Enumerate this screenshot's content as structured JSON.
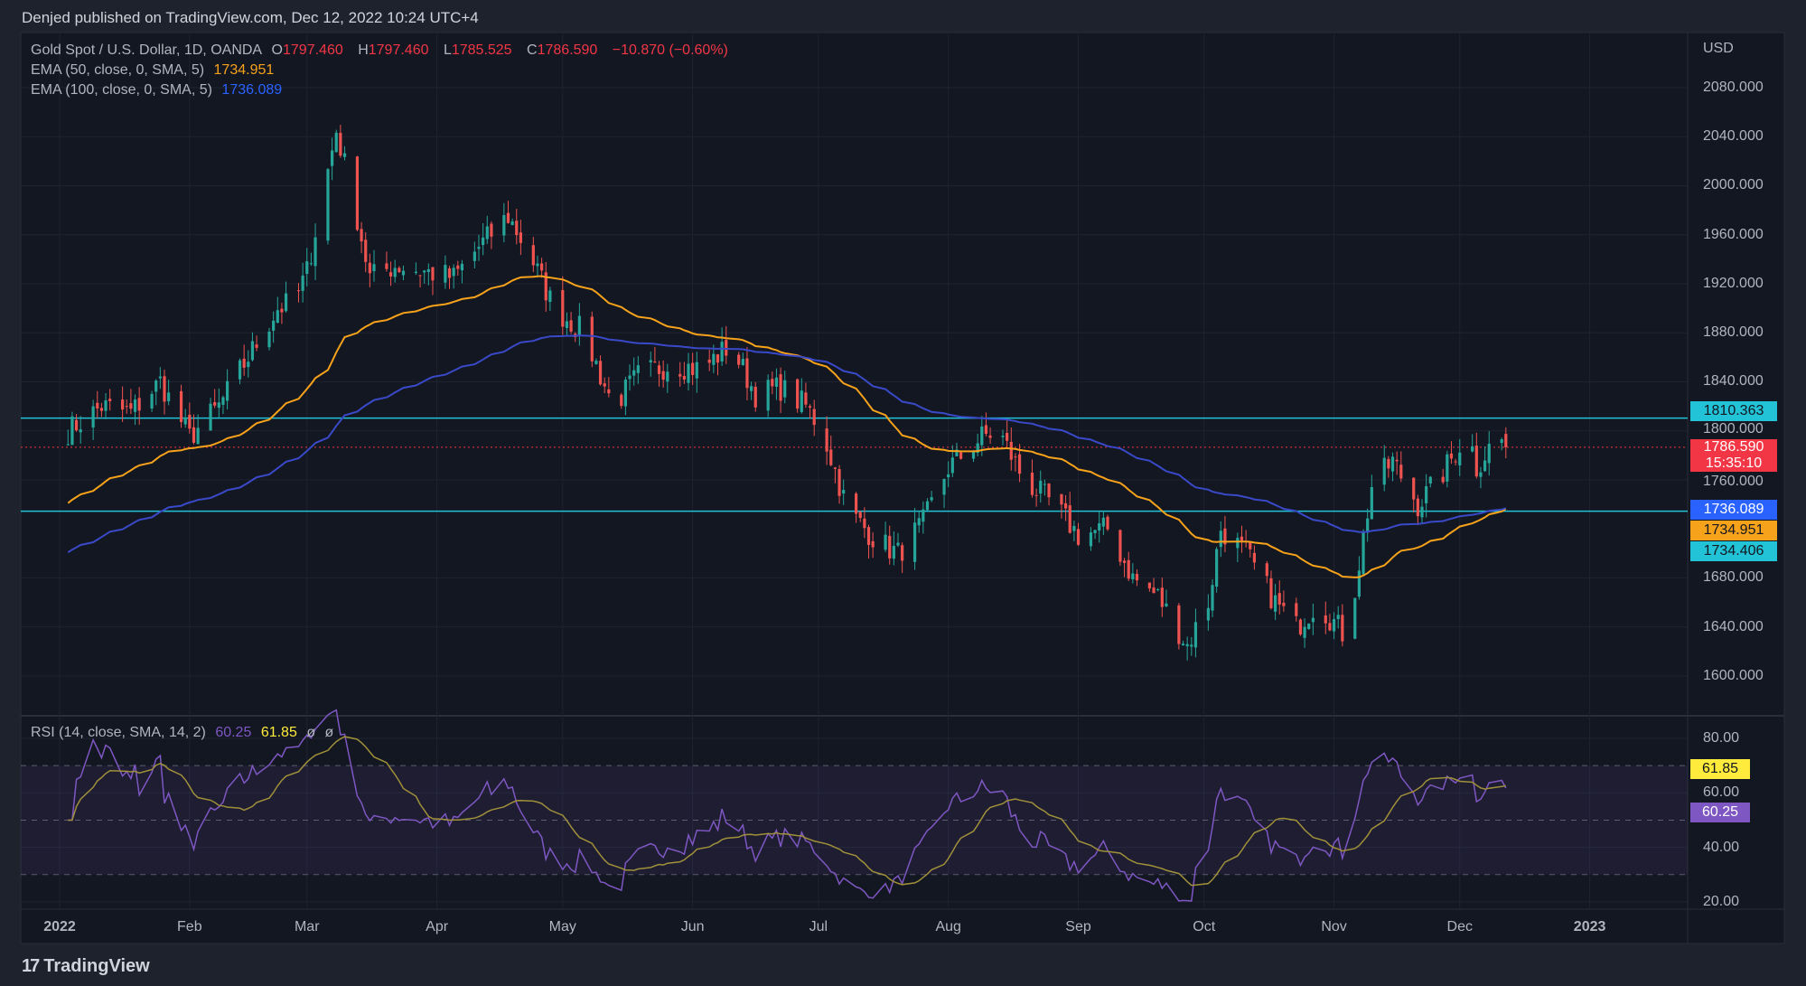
{
  "header": {
    "published": "Denjed published on TradingView.com, Dec 12, 2022 10:24 UTC+4"
  },
  "legend": {
    "symbol": "Gold Spot / U.S. Dollar, 1D, OANDA",
    "o_label": "O",
    "o": "1797.460",
    "h_label": "H",
    "h": "1797.460",
    "l_label": "L",
    "l": "1785.525",
    "c_label": "C",
    "c": "1786.590",
    "change": "−10.870 (−0.60%)",
    "ema50_label": "EMA (50, close, 0, SMA, 5)",
    "ema50": "1734.951",
    "ema100_label": "EMA (100, close, 0, SMA, 5)",
    "ema100": "1736.089",
    "rsi_label": "RSI (14, close, SMA, 14, 2)",
    "rsi": "60.25",
    "rsi_sma": "61.85",
    "na1": "ø",
    "na2": "ø"
  },
  "axis": {
    "currency": "USD"
  },
  "tags": {
    "resistance": "1810.363",
    "last_price": "1786.590",
    "countdown": "15:35:10",
    "ema100": "1736.089",
    "ema50": "1734.951",
    "support": "1734.406",
    "rsi_sma": "61.85",
    "rsi": "60.25"
  },
  "brand": {
    "name": "TradingView",
    "mark": "17"
  },
  "colors": {
    "up": "#26a69a",
    "down": "#ef5350",
    "ema50": "#f7a21b",
    "ema100": "#3949c8",
    "hline": "#22c3d6",
    "rsi": "#7e57c2",
    "rsi_sma": "#a0903a"
  },
  "chart_data": {
    "type": "candlestick",
    "title": "Gold Spot / U.S. Dollar, 1D, OANDA",
    "price_ticks": [
      1600,
      1640,
      1680,
      1760,
      1800,
      1840,
      1880,
      1920,
      1960,
      2000,
      2040,
      2080
    ],
    "price_tick_labels": [
      "1600.000",
      "1640.000",
      "1680.000",
      "1760.000",
      "1800.000",
      "1840.000",
      "1880.000",
      "1920.000",
      "1960.000",
      "2000.000",
      "2040.000",
      "2080.000"
    ],
    "ylim": [
      1570,
      2095
    ],
    "rsi_ticks": [
      20,
      40,
      60,
      80
    ],
    "rsi_tick_labels": [
      "20.00",
      "40.00",
      "60.00",
      "80.00"
    ],
    "rsi_band": [
      30,
      70
    ],
    "x_labels": [
      {
        "label": "2022",
        "day": 0
      },
      {
        "label": "Feb",
        "day": 31
      },
      {
        "label": "Mar",
        "day": 59
      },
      {
        "label": "Apr",
        "day": 90
      },
      {
        "label": "May",
        "day": 120
      },
      {
        "label": "Jun",
        "day": 151
      },
      {
        "label": "Jul",
        "day": 181
      },
      {
        "label": "Aug",
        "day": 212
      },
      {
        "label": "Sep",
        "day": 243
      },
      {
        "label": "Oct",
        "day": 273
      },
      {
        "label": "Nov",
        "day": 304
      },
      {
        "label": "Dec",
        "day": 334
      },
      {
        "label": "2023",
        "day": 365
      }
    ],
    "horizontal_lines": [
      1810.363,
      1734.406
    ],
    "last_price": 1786.59,
    "close_anchors_day_price": [
      [
        2,
        1800
      ],
      [
        10,
        1820
      ],
      [
        17,
        1815
      ],
      [
        24,
        1840
      ],
      [
        31,
        1795
      ],
      [
        38,
        1820
      ],
      [
        45,
        1860
      ],
      [
        52,
        1900
      ],
      [
        56,
        1905
      ],
      [
        59,
        1930
      ],
      [
        66,
        2045
      ],
      [
        70,
        1990
      ],
      [
        74,
        1925
      ],
      [
        80,
        1935
      ],
      [
        87,
        1930
      ],
      [
        94,
        1925
      ],
      [
        100,
        1950
      ],
      [
        107,
        1975
      ],
      [
        112,
        1945
      ],
      [
        118,
        1900
      ],
      [
        125,
        1880
      ],
      [
        132,
        1820
      ],
      [
        138,
        1845
      ],
      [
        146,
        1855
      ],
      [
        153,
        1850
      ],
      [
        160,
        1870
      ],
      [
        166,
        1830
      ],
      [
        172,
        1835
      ],
      [
        178,
        1820
      ],
      [
        182,
        1800
      ],
      [
        188,
        1735
      ],
      [
        195,
        1710
      ],
      [
        200,
        1700
      ],
      [
        206,
        1725
      ],
      [
        212,
        1770
      ],
      [
        220,
        1795
      ],
      [
        224,
        1800
      ],
      [
        230,
        1760
      ],
      [
        237,
        1740
      ],
      [
        243,
        1715
      ],
      [
        250,
        1720
      ],
      [
        256,
        1680
      ],
      [
        262,
        1665
      ],
      [
        269,
        1625
      ],
      [
        274,
        1660
      ],
      [
        277,
        1720
      ],
      [
        283,
        1700
      ],
      [
        290,
        1660
      ],
      [
        295,
        1640
      ],
      [
        300,
        1660
      ],
      [
        305,
        1640
      ],
      [
        307,
        1630
      ],
      [
        313,
        1755
      ],
      [
        318,
        1775
      ],
      [
        324,
        1740
      ],
      [
        329,
        1760
      ],
      [
        336,
        1800
      ],
      [
        338,
        1770
      ],
      [
        343,
        1797
      ],
      [
        345,
        1786.59
      ]
    ]
  }
}
